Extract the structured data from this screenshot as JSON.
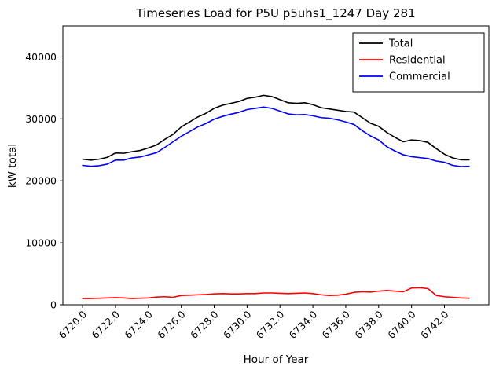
{
  "chart_data": {
    "type": "line",
    "title": "Timeseries Load for P5U p5uhs1_1247  Day 281",
    "xlabel": "Hour of Year",
    "ylabel": "kW total",
    "xlim": [
      6718.8,
      6744.7
    ],
    "ylim": [
      0,
      45000
    ],
    "xticks": [
      6720,
      6722,
      6724,
      6726,
      6728,
      6730,
      6732,
      6734,
      6736,
      6738,
      6740,
      6742
    ],
    "xtick_labels": [
      "6720.0",
      "6722.0",
      "6724.0",
      "6726.0",
      "6728.0",
      "6730.0",
      "6732.0",
      "6734.0",
      "6736.0",
      "6738.0",
      "6740.0",
      "6742.0"
    ],
    "yticks": [
      0,
      10000,
      20000,
      30000,
      40000
    ],
    "ytick_labels": [
      "0",
      "10000",
      "20000",
      "30000",
      "40000"
    ],
    "grid": false,
    "legend_position": "upper right",
    "x": [
      6720.0,
      6720.5,
      6721.0,
      6721.5,
      6722.0,
      6722.5,
      6723.0,
      6723.5,
      6724.0,
      6724.5,
      6725.0,
      6725.5,
      6726.0,
      6726.5,
      6727.0,
      6727.5,
      6728.0,
      6728.5,
      6729.0,
      6729.5,
      6730.0,
      6730.5,
      6731.0,
      6731.5,
      6732.0,
      6732.5,
      6733.0,
      6733.5,
      6734.0,
      6734.5,
      6735.0,
      6735.5,
      6736.0,
      6736.5,
      6737.0,
      6737.5,
      6738.0,
      6738.5,
      6739.0,
      6739.5,
      6740.0,
      6740.5,
      6741.0,
      6741.5,
      6742.0,
      6742.5,
      6743.0,
      6743.5
    ],
    "series": [
      {
        "name": "Total",
        "color": "#000000",
        "values": [
          23500,
          23350,
          23500,
          23800,
          24500,
          24450,
          24700,
          24900,
          25300,
          25800,
          26700,
          27500,
          28700,
          29500,
          30300,
          30900,
          31700,
          32200,
          32500,
          32800,
          33300,
          33500,
          33800,
          33600,
          33100,
          32600,
          32500,
          32600,
          32300,
          31800,
          31600,
          31400,
          31200,
          31100,
          30200,
          29300,
          28800,
          27800,
          27000,
          26300,
          26600,
          26500,
          26200,
          25200,
          24300,
          23700,
          23400,
          23400
        ]
      },
      {
        "name": "Residential",
        "color": "#ff0000",
        "values": [
          1000,
          1000,
          1050,
          1100,
          1150,
          1100,
          1000,
          1050,
          1100,
          1250,
          1300,
          1200,
          1500,
          1550,
          1600,
          1650,
          1750,
          1800,
          1750,
          1750,
          1800,
          1800,
          1900,
          1900,
          1850,
          1800,
          1850,
          1900,
          1800,
          1600,
          1500,
          1550,
          1700,
          2000,
          2100,
          2050,
          2200,
          2300,
          2200,
          2100,
          2700,
          2750,
          2600,
          1500,
          1300,
          1200,
          1100,
          1050
        ]
      },
      {
        "name": "Commercial",
        "color": "#0000ff",
        "values": [
          22500,
          22350,
          22450,
          22700,
          23350,
          23350,
          23700,
          23850,
          24200,
          24550,
          25400,
          26300,
          27200,
          27950,
          28700,
          29250,
          29950,
          30400,
          30750,
          31050,
          31500,
          31700,
          31900,
          31700,
          31250,
          30800,
          30650,
          30700,
          30500,
          30200,
          30100,
          29850,
          29500,
          29100,
          28100,
          27250,
          26600,
          25500,
          24800,
          24200,
          23900,
          23750,
          23600,
          23200,
          23000,
          22500,
          22300,
          22350
        ]
      }
    ]
  }
}
